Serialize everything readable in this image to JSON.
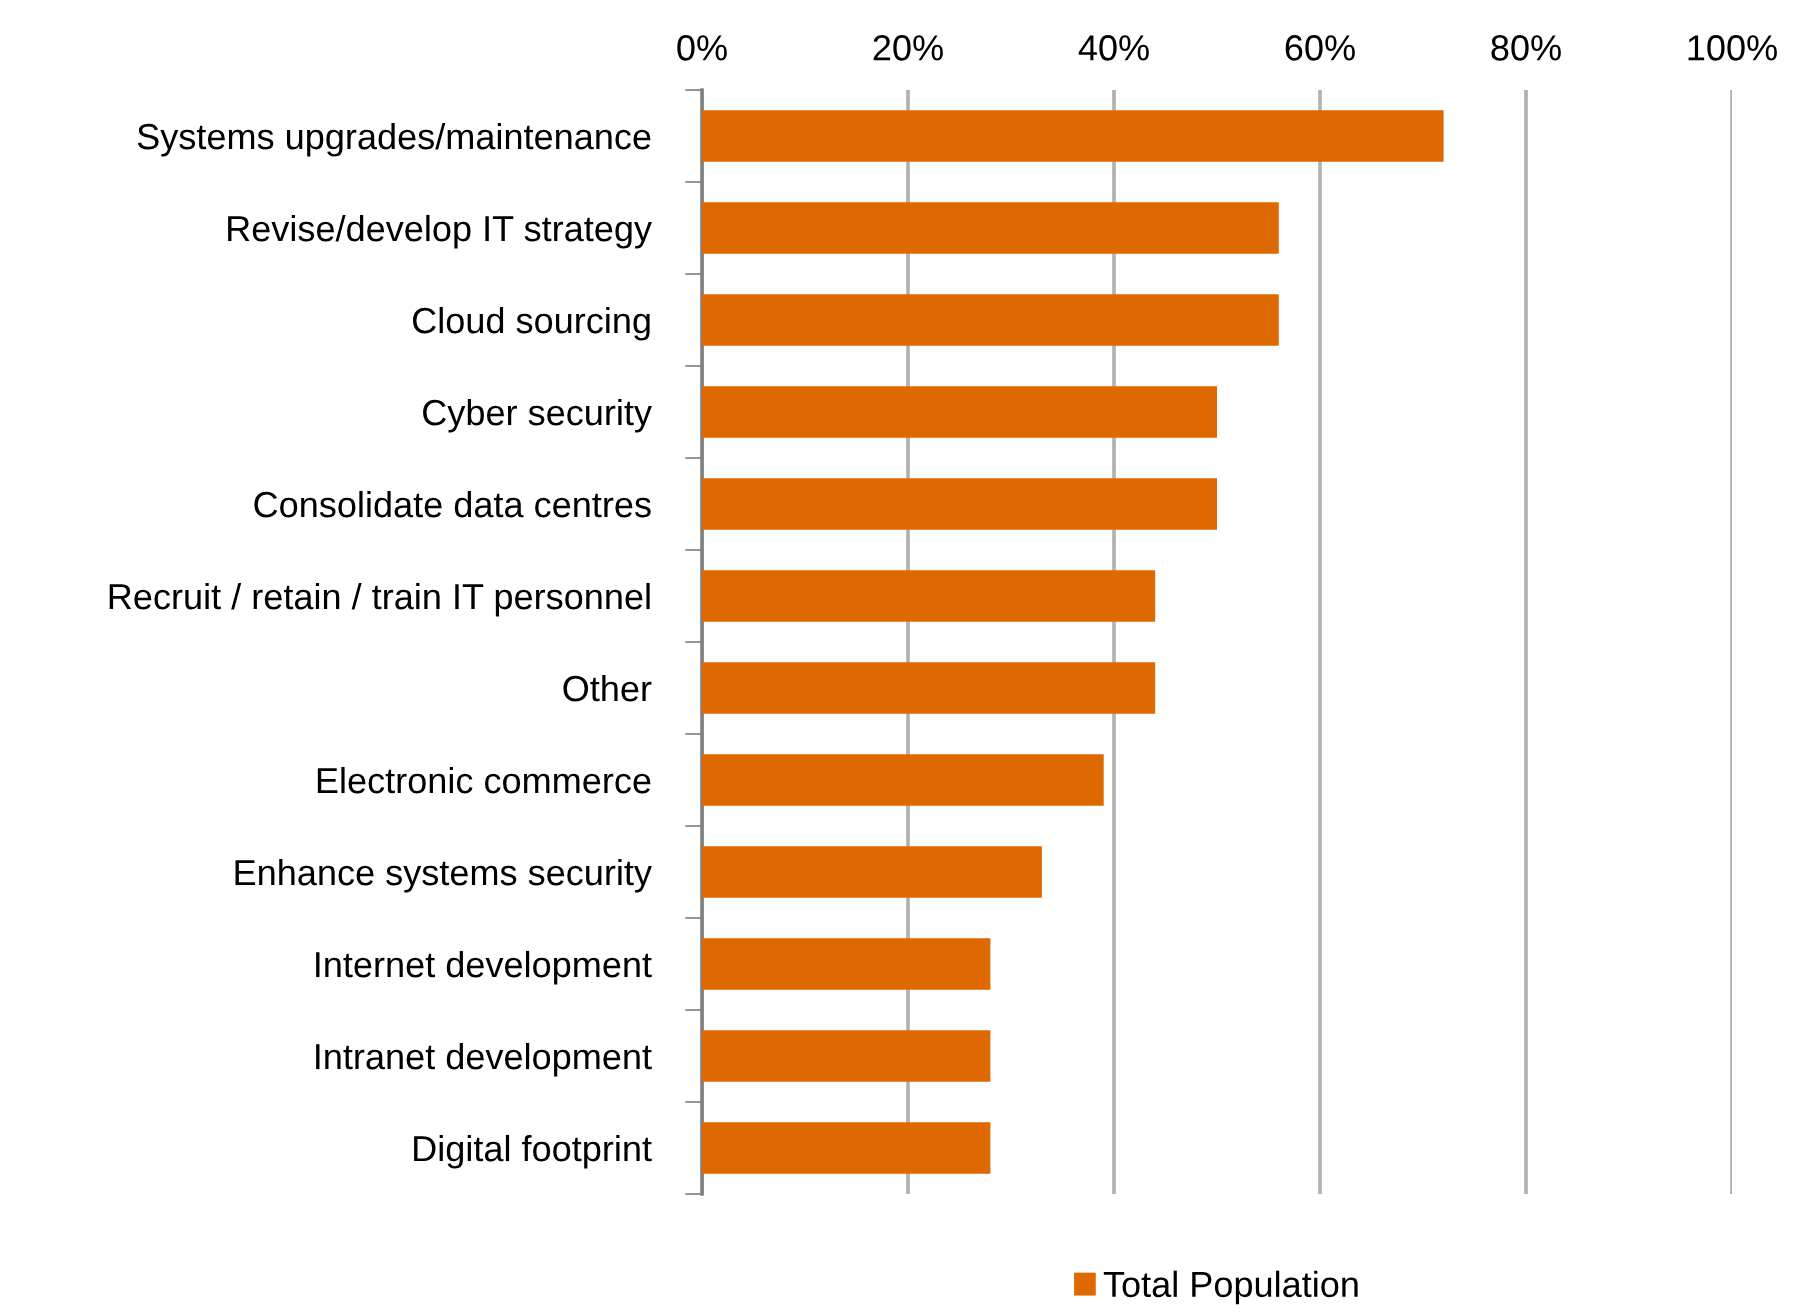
{
  "chart_data": {
    "type": "bar",
    "orientation": "horizontal",
    "categories": [
      "Systems upgrades/maintenance",
      "Revise/develop IT strategy",
      "Cloud sourcing",
      "Cyber security",
      "Consolidate data centres",
      "Recruit / retain / train IT personnel",
      "Other",
      "Electronic commerce",
      "Enhance systems security",
      "Internet development",
      "Intranet development",
      "Digital footprint"
    ],
    "series": [
      {
        "name": "Total Population",
        "color": "#dd6900",
        "values": [
          72,
          56,
          56,
          50,
          50,
          44,
          44,
          39,
          33,
          28,
          28,
          28
        ]
      }
    ],
    "xlim": [
      0,
      100
    ],
    "xticks": [
      {
        "value": 0,
        "label": "0%"
      },
      {
        "value": 20,
        "label": "20%"
      },
      {
        "value": 40,
        "label": "40%"
      },
      {
        "value": 60,
        "label": "60%"
      },
      {
        "value": 80,
        "label": "80%"
      },
      {
        "value": 100,
        "label": "100%"
      }
    ],
    "grid": "x",
    "legend": "bottom"
  }
}
